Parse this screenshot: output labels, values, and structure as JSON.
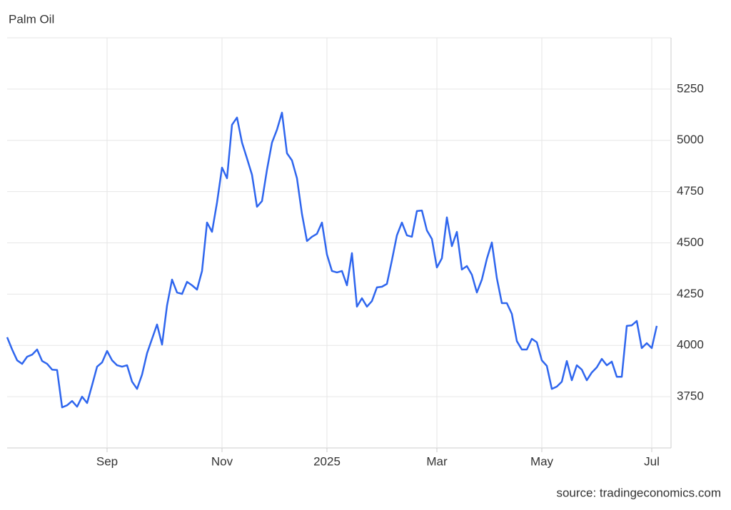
{
  "chart_data": {
    "type": "line",
    "title": "Palm Oil",
    "source": "source: tradingeconomics.com",
    "categories": [
      null,
      null,
      null,
      null,
      null,
      null,
      null,
      null,
      null,
      null,
      null,
      null,
      null,
      null,
      null,
      null,
      null,
      null,
      null,
      null,
      "Sep",
      null,
      null,
      null,
      null,
      null,
      null,
      null,
      null,
      null,
      null,
      null,
      null,
      null,
      null,
      null,
      null,
      null,
      null,
      null,
      null,
      null,
      null,
      "Nov",
      null,
      null,
      null,
      null,
      null,
      null,
      null,
      null,
      null,
      null,
      null,
      null,
      null,
      null,
      null,
      null,
      null,
      null,
      null,
      null,
      "2025",
      null,
      null,
      null,
      null,
      null,
      null,
      null,
      null,
      null,
      null,
      null,
      null,
      null,
      null,
      null,
      null,
      null,
      null,
      null,
      null,
      null,
      "Mar",
      null,
      null,
      null,
      null,
      null,
      null,
      null,
      null,
      null,
      null,
      null,
      null,
      null,
      null,
      null,
      null,
      null,
      null,
      null,
      null,
      "May",
      null,
      null,
      null,
      null,
      null,
      null,
      null,
      null,
      null,
      null,
      null,
      null,
      null,
      null,
      null,
      null,
      null,
      null,
      null,
      null,
      null,
      "Jul",
      null
    ],
    "values": [
      4040,
      3980,
      3927,
      3910,
      3945,
      3955,
      3980,
      3924,
      3910,
      3882,
      3880,
      3698,
      3708,
      3729,
      3701,
      3750,
      3719,
      3806,
      3896,
      3917,
      3973,
      3927,
      3903,
      3896,
      3903,
      3823,
      3788,
      3858,
      3962,
      4032,
      4102,
      4004,
      4195,
      4321,
      4258,
      4251,
      4310,
      4293,
      4272,
      4363,
      4599,
      4554,
      4697,
      4867,
      4815,
      5076,
      5111,
      4989,
      4912,
      4832,
      4676,
      4704,
      4857,
      4989,
      5052,
      5135,
      4937,
      4902,
      4815,
      4641,
      4509,
      4530,
      4544,
      4599,
      4443,
      4363,
      4356,
      4363,
      4293,
      4450,
      4189,
      4230,
      4189,
      4216,
      4283,
      4286,
      4300,
      4415,
      4537,
      4599,
      4537,
      4530,
      4655,
      4658,
      4561,
      4519,
      4380,
      4425,
      4624,
      4484,
      4554,
      4370,
      4387,
      4345,
      4258,
      4321,
      4422,
      4502,
      4328,
      4206,
      4206,
      4154,
      4021,
      3980,
      3980,
      4032,
      4015,
      3927,
      3900,
      3788,
      3799,
      3823,
      3924,
      3830,
      3903,
      3882,
      3830,
      3868,
      3893,
      3934,
      3903,
      3921,
      3847,
      3847,
      4095,
      4098,
      4119,
      3987,
      4011,
      3987,
      4095
    ],
    "color": "#2f66ee",
    "ylim": [
      3500,
      5500
    ],
    "yticks": [
      3750,
      4000,
      4250,
      4500,
      4750,
      5000,
      5250
    ],
    "grid": true
  }
}
